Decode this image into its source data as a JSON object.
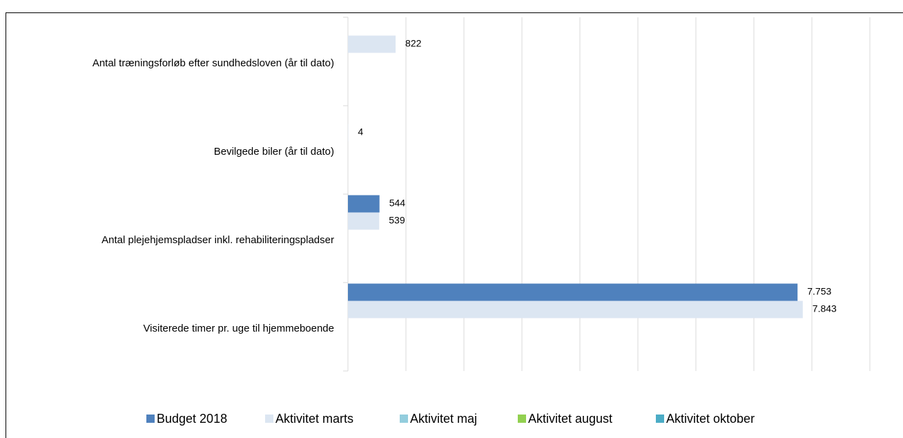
{
  "chart_data": {
    "type": "bar",
    "orientation": "horizontal",
    "categories": [
      "Antal træningsforløb efter sundhedsloven (år til dato)",
      "Bevilgede biler (år til dato)",
      "Antal plejehjemspladser inkl. rehabiliteringspladser",
      "Visiterede timer pr. uge til hjemmeboende"
    ],
    "series": [
      {
        "name": "Budget 2018",
        "color": "#4f81bd",
        "values": [
          null,
          null,
          544,
          7753
        ],
        "value_labels": [
          null,
          null,
          "544",
          "7.753"
        ]
      },
      {
        "name": "Aktivitet marts",
        "color": "#dce6f2",
        "values": [
          822,
          4,
          539,
          7843
        ],
        "value_labels": [
          "822",
          "4",
          "539",
          "7.843"
        ]
      },
      {
        "name": "Aktivitet maj",
        "color": "#93cddd",
        "values": [
          null,
          null,
          null,
          null
        ]
      },
      {
        "name": "Aktivitet august",
        "color": "#92d050",
        "values": [
          null,
          null,
          null,
          null
        ]
      },
      {
        "name": "Aktivitet oktober",
        "color": "#4bacc6",
        "values": [
          null,
          null,
          null,
          null
        ]
      }
    ],
    "xlim": [
      0,
      9000
    ],
    "xticks": [
      0,
      1000,
      2000,
      3000,
      4000,
      5000,
      6000,
      7000,
      8000,
      9000
    ],
    "grid": true,
    "legend": "bottom"
  }
}
